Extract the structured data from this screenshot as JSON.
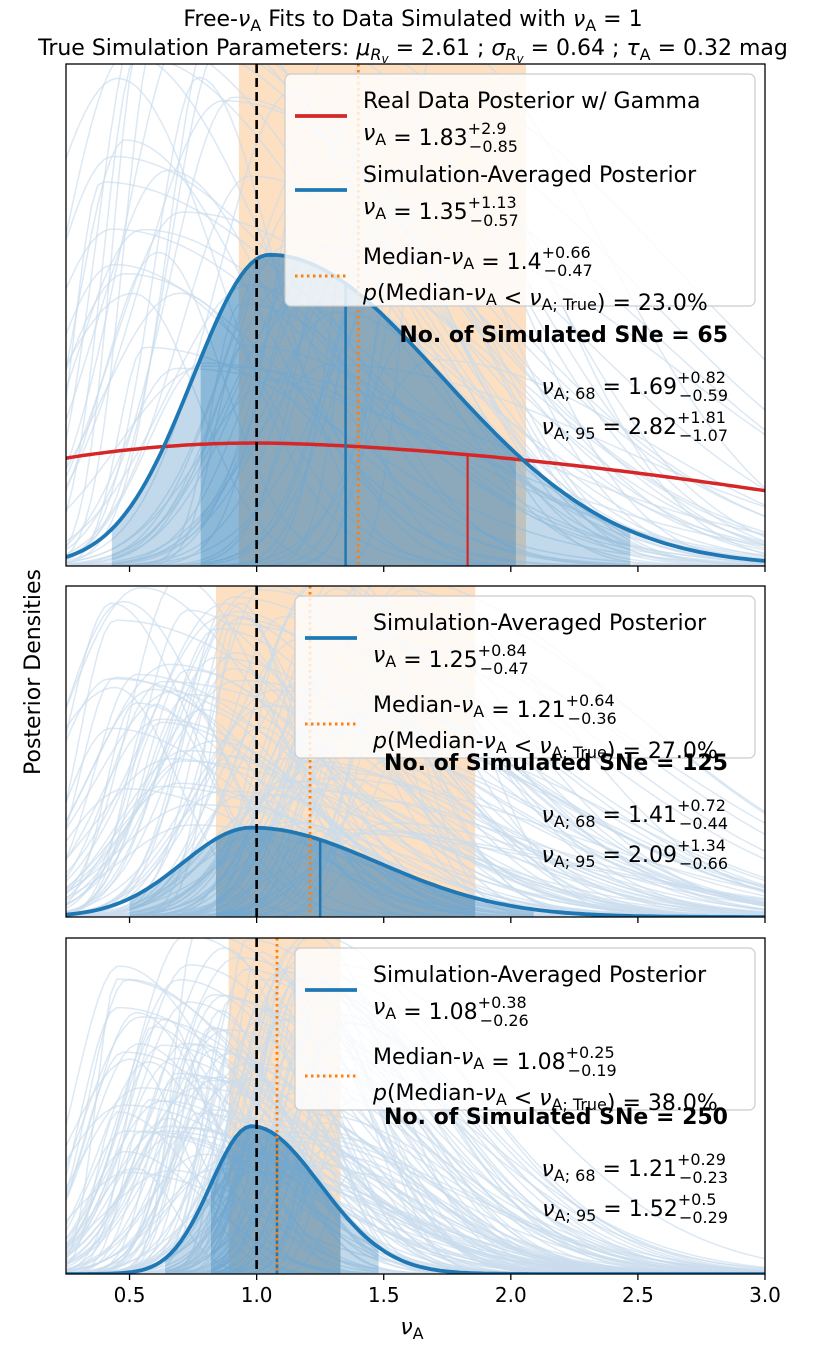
{
  "figure": {
    "title_line1_pre": "Free-",
    "title_line1_post": " Fits to Data Simulated with ",
    "title_line2_pre": "True Simulation Parameters: ",
    "title_line2_mu": "2.61",
    "title_line2_sigma": "0.64",
    "title_line2_tau": "0.32",
    "title_line2_unit": "mag",
    "nu_symbol": "ν",
    "sub_A": "A",
    "sub_Rv": "R",
    "sub_v": "v",
    "nuA_true_value": "1",
    "ylabel": "Posterior Densities",
    "xlabel": "ν",
    "xlabel_sub": "A",
    "x_ticks": [
      "0.5",
      "1.0",
      "1.5",
      "2.0",
      "2.5",
      "3.0"
    ]
  },
  "colors": {
    "sim_blue": "#1f77b4",
    "real_red": "#d62728",
    "median_orange": "#ff7f0e",
    "band_orange": "#fdd9b6",
    "faint_blue": "#c9dcec",
    "true_line": "#000000"
  },
  "chart_data": [
    {
      "type": "line",
      "panel": "top",
      "x_range": [
        0.25,
        3.0
      ],
      "n_simulated_sne": 65,
      "true_nu_A": 1.0,
      "legend": {
        "real_label": "Real Data Posterior w/ Gamma",
        "real_value": "1.83",
        "real_plus": "+2.9",
        "real_minus": "−0.85",
        "sim_label": "Simulation-Averaged Posterior",
        "sim_value": "1.35",
        "sim_plus": "+1.13",
        "sim_minus": "−0.57",
        "median_label": "Median-",
        "median_value": "1.4",
        "median_plus": "+0.66",
        "median_minus": "−0.47",
        "p_label": "p(Median-",
        "p_value": "23.0%"
      },
      "annotation": {
        "count_label": "No. of Simulated SNe = 65",
        "nu68_value": "1.69",
        "nu68_plus": "+0.82",
        "nu68_minus": "−0.59",
        "nu95_value": "2.82",
        "nu95_plus": "+1.81",
        "nu95_minus": "−1.07",
        "sub68": "A; 68",
        "sub95": "A; 95",
        "true_sub": "A; True"
      },
      "sim_mode": 1.05,
      "sim_peak": 0.62,
      "sim_sigma_left": 0.3,
      "sim_sigma_right": 0.68,
      "sim_median": 1.35,
      "sim_hpd_68": [
        0.78,
        2.02
      ],
      "sim_hpd_95": [
        0.43,
        2.47
      ],
      "real_level": 0.245,
      "real_peak_x": 1.0,
      "real_right_level": 0.15,
      "real_median": 1.83,
      "median_line": 1.4,
      "median_band": [
        0.93,
        2.06
      ]
    },
    {
      "type": "line",
      "panel": "middle",
      "x_range": [
        0.25,
        3.0
      ],
      "n_simulated_sne": 125,
      "true_nu_A": 1.0,
      "legend": {
        "sim_label": "Simulation-Averaged Posterior",
        "sim_value": "1.25",
        "sim_plus": "+0.84",
        "sim_minus": "−0.47",
        "median_label": "Median-",
        "median_value": "1.21",
        "median_plus": "+0.64",
        "median_minus": "−0.36",
        "p_label": "p(Median-",
        "p_value": "27.0%"
      },
      "annotation": {
        "count_label": "No. of Simulated SNe = 125",
        "nu68_value": "1.41",
        "nu68_plus": "+0.72",
        "nu68_minus": "−0.44",
        "nu95_value": "2.09",
        "nu95_plus": "+1.34",
        "nu95_minus": "−0.66",
        "sub68": "A; 68",
        "sub95": "A; 95",
        "true_sub": "A; True"
      },
      "sim_mode": 0.98,
      "sim_peak": 0.27,
      "sim_sigma_left": 0.27,
      "sim_sigma_right": 0.5,
      "sim_median": 1.25,
      "sim_hpd_68": [
        0.84,
        1.86
      ],
      "sim_hpd_95": [
        0.5,
        2.09
      ],
      "median_line": 1.21,
      "median_band": [
        0.84,
        1.86
      ]
    },
    {
      "type": "line",
      "panel": "bottom",
      "x_range": [
        0.25,
        3.0
      ],
      "n_simulated_sne": 250,
      "true_nu_A": 1.0,
      "legend": {
        "sim_label": "Simulation-Averaged Posterior",
        "sim_value": "1.08",
        "sim_plus": "+0.38",
        "sim_minus": "−0.26",
        "median_label": "Median-",
        "median_value": "1.08",
        "median_plus": "+0.25",
        "median_minus": "−0.19",
        "p_label": "p(Median-",
        "p_value": "38.0%"
      },
      "annotation": {
        "count_label": "No. of Simulated SNe = 250",
        "nu68_value": "1.21",
        "nu68_plus": "+0.29",
        "nu68_minus": "−0.23",
        "nu95_value": "1.52",
        "nu95_plus": "+0.5",
        "nu95_minus": "−0.29",
        "sub68": "A; 68",
        "sub95": "A; 95",
        "true_sub": "A; True"
      },
      "sim_mode": 0.98,
      "sim_peak": 0.44,
      "sim_sigma_left": 0.16,
      "sim_sigma_right": 0.27,
      "sim_median": 1.08,
      "sim_hpd_68": [
        0.82,
        1.33
      ],
      "sim_hpd_95": [
        0.64,
        1.48
      ],
      "median_line": 1.08,
      "median_band": [
        0.89,
        1.33
      ]
    }
  ]
}
